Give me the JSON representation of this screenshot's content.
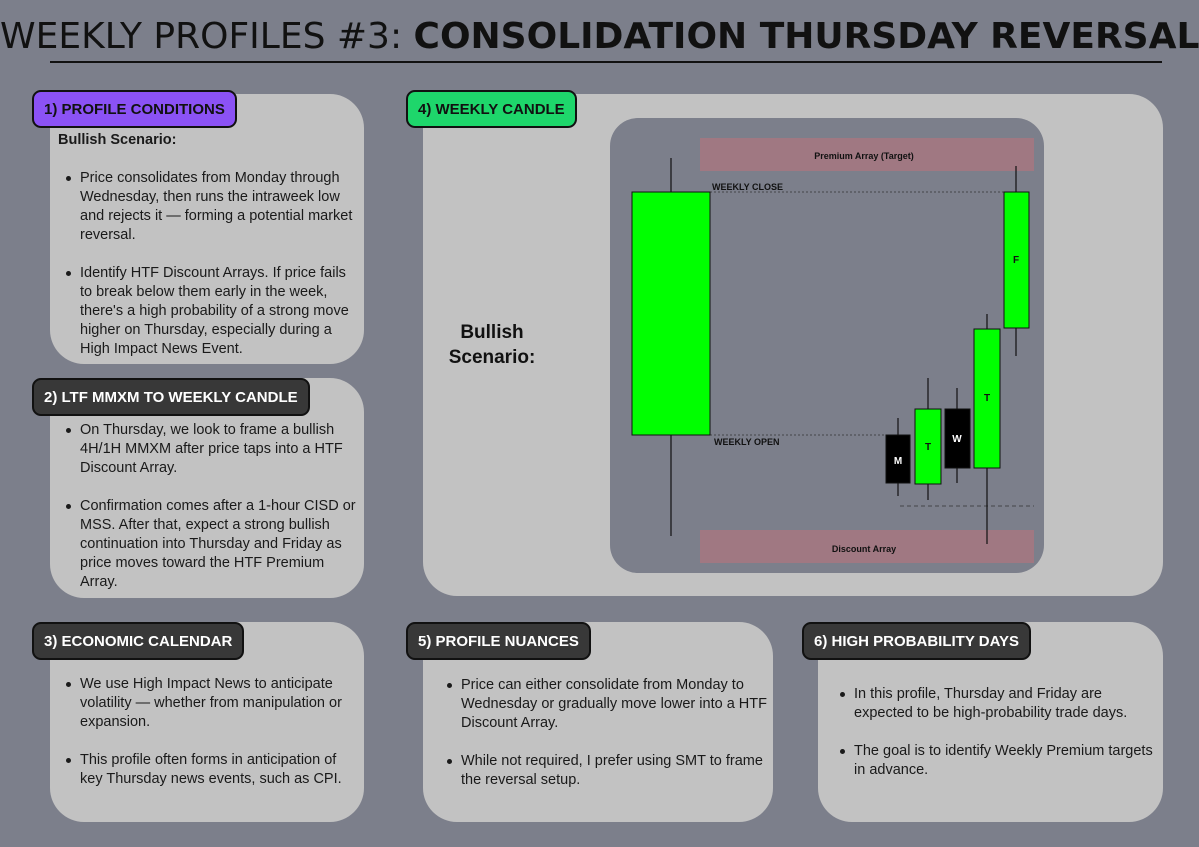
{
  "title": {
    "light": "WEEKLY PROFILES #3: ",
    "bold": "CONSOLIDATION THURSDAY REVERSAL"
  },
  "sections": {
    "profile_conditions": {
      "label": "1) PROFILE CONDITIONS",
      "subhead": "Bullish Scenario:",
      "bullets": [
        "Price consolidates from Monday through Wednesday, then runs the intraweek low and rejects it — forming a potential market reversal.",
        "Identify HTF Discount Arrays. If price fails to break below them early in the week, there's a high probability of a strong move higher on Thursday, especially during a High Impact News Event."
      ]
    },
    "ltf_mmxm": {
      "label": "2) LTF MMXM TO WEEKLY CANDLE",
      "bullets": [
        "On Thursday, we look to frame a bullish 4H/1H MMXM after price taps into a HTF Discount Array.",
        "Confirmation comes after a 1-hour CISD or MSS. After that, expect a strong bullish continuation into Thursday and Friday as price moves toward the HTF Premium Array."
      ]
    },
    "economic_calendar": {
      "label": "3) ECONOMIC CALENDAR",
      "bullets": [
        "We use High Impact News to anticipate volatility — whether from manipulation or expansion.",
        "This profile often forms in anticipation of key Thursday news events, such as CPI."
      ]
    },
    "weekly_candle": {
      "label": "4) WEEKLY CANDLE",
      "scenario_label": "Bullish Scenario:",
      "premium_label": "Premium Array (Target)",
      "discount_label": "Discount Array",
      "weekly_close_label": "WEEKLY CLOSE",
      "weekly_open_label": "WEEKLY OPEN",
      "candle_days": [
        "M",
        "T",
        "W",
        "T",
        "F"
      ]
    },
    "profile_nuances": {
      "label": "5) PROFILE NUANCES",
      "bullets": [
        "Price can either consolidate from Monday to Wednesday or gradually move lower into a HTF Discount Array.",
        "While not required, I prefer using SMT to frame the reversal setup."
      ]
    },
    "high_probability_days": {
      "label": "6) HIGH PROBABILITY DAYS",
      "bullets": [
        "In this profile, Thursday and Friday are expected to be high-probability trade days.",
        "The goal is to identify Weekly Premium targets in advance."
      ]
    }
  },
  "colors": {
    "background": "#7c7f8b",
    "card": "#c2c2c2",
    "bullish_candle": "#00ff00",
    "bearish_candle": "#000000",
    "zone": "#a07882",
    "pill_purple": "#8b52f5",
    "pill_green": "#1ed66b",
    "pill_dark": "#383838"
  }
}
